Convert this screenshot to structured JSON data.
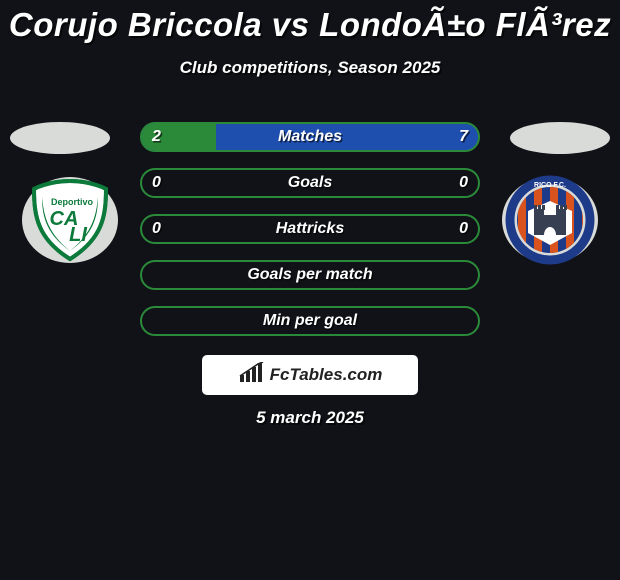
{
  "title": "Corujo Briccola vs LondoÃ±o FlÃ³rez",
  "subtitle": "Club competitions, Season 2025",
  "date": "5 march 2025",
  "brand": "FcTables.com",
  "background": "#111217",
  "club_left": {
    "bg_ellipse": "#d9dbd8",
    "shield_fill": "#ffffff",
    "shield_stroke": "#0c7a3b",
    "text_fill": "#0c7a3b"
  },
  "club_right": {
    "bg_ellipse": "#d9dbd8",
    "ring": "#1e3b8a",
    "stripe_a": "#d9531e",
    "stripe_b": "#1e3b8a",
    "castle_bg": "#ffffff",
    "castle_fill": "#364052"
  },
  "stats": [
    {
      "label": "Matches",
      "left_value": "2",
      "right_value": "7",
      "left_pct": 22,
      "right_pct": 78,
      "left_color": "#2b8a3a",
      "right_color": "#1f4fae",
      "border_color": "#2b8a3a",
      "bg_color": "#1f4fae"
    },
    {
      "label": "Goals",
      "left_value": "0",
      "right_value": "0",
      "left_pct": 0,
      "right_pct": 0,
      "left_color": "#2b8a3a",
      "right_color": "#1f4fae",
      "border_color": "#2b8a3a",
      "bg_color": "#111217"
    },
    {
      "label": "Hattricks",
      "left_value": "0",
      "right_value": "0",
      "left_pct": 0,
      "right_pct": 0,
      "left_color": "#2b8a3a",
      "right_color": "#1f4fae",
      "border_color": "#2b8a3a",
      "bg_color": "#111217"
    },
    {
      "label": "Goals per match",
      "left_value": "",
      "right_value": "",
      "left_pct": 0,
      "right_pct": 0,
      "left_color": "#2b8a3a",
      "right_color": "#1f4fae",
      "border_color": "#2b8a3a",
      "bg_color": "#111217"
    },
    {
      "label": "Min per goal",
      "left_value": "",
      "right_value": "",
      "left_pct": 0,
      "right_pct": 0,
      "left_color": "#2b8a3a",
      "right_color": "#1f4fae",
      "border_color": "#2b8a3a",
      "bg_color": "#111217"
    }
  ]
}
